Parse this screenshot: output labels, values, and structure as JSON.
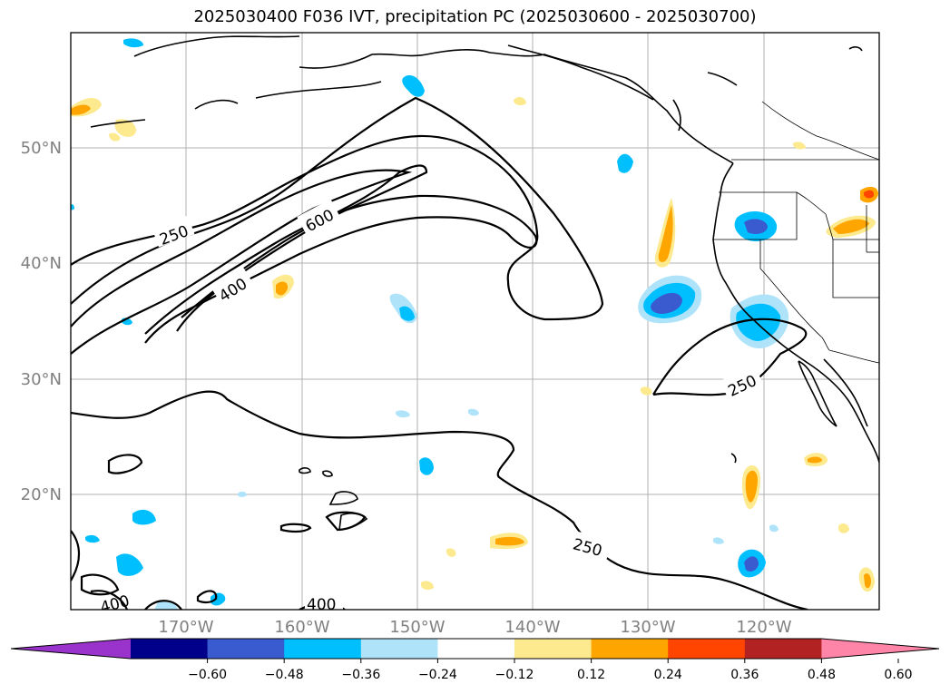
{
  "title": "2025030400 F036 IVT, precipitation PC (2025030600 - 2025030700)",
  "lat_labels": [
    "50°N",
    "40°N",
    "30°N",
    "20°N"
  ],
  "lon_labels": [
    "170°W",
    "160°W",
    "150°W",
    "140°W",
    "130°W",
    "120°W"
  ],
  "contour_labels": [
    "250",
    "600",
    "400",
    "250",
    "250",
    "400",
    "400"
  ],
  "colorbar": {
    "colors": [
      "#9933cc",
      "#00008b",
      "#3a5bd0",
      "#00bfff",
      "#aee3fa",
      "#ffffff",
      "#fde98e",
      "#ffa500",
      "#ff4500",
      "#b22222",
      "#ff85a8"
    ],
    "tick_labels": [
      "−0.60",
      "−0.48",
      "−0.36",
      "−0.24",
      "−0.12",
      "0.12",
      "0.24",
      "0.36",
      "0.48",
      "0.60"
    ]
  }
}
